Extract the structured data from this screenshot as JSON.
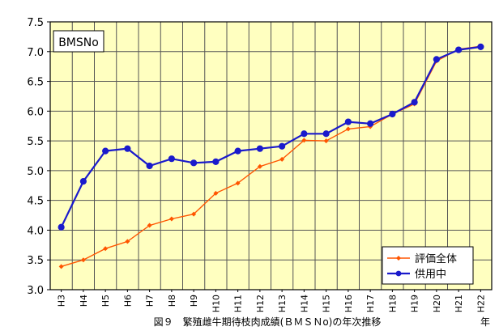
{
  "chart_data": {
    "type": "line",
    "title": "",
    "inset_label": "BMSNo",
    "caption": "図９　繁殖雌牛期待枝肉成績(ＢＭＳＮo)の年次推移",
    "xlabel": "年",
    "ylabel": "",
    "categories": [
      "H3",
      "H4",
      "H5",
      "H6",
      "H7",
      "H8",
      "H9",
      "H10",
      "H11",
      "H12",
      "H13",
      "H14",
      "H15",
      "H16",
      "H17",
      "H18",
      "H19",
      "H20",
      "H21",
      "H22"
    ],
    "ylim": [
      3.0,
      7.5
    ],
    "yticks": [
      "3.0",
      "3.5",
      "4.0",
      "4.5",
      "5.0",
      "5.5",
      "6.0",
      "6.5",
      "7.0",
      "7.5"
    ],
    "grid": true,
    "legend_position": "bottom-right",
    "series": [
      {
        "name": "評価全体",
        "color": "#ff5500",
        "marker": "diamond",
        "values": [
          3.39,
          3.5,
          3.69,
          3.81,
          4.08,
          4.19,
          4.27,
          4.62,
          4.79,
          5.07,
          5.19,
          5.51,
          5.5,
          5.7,
          5.74,
          5.95,
          6.12,
          6.84,
          7.04,
          7.09
        ]
      },
      {
        "name": "供用中",
        "color": "#1a1acc",
        "marker": "circle",
        "values": [
          4.05,
          4.82,
          5.33,
          5.37,
          5.08,
          5.2,
          5.13,
          5.15,
          5.33,
          5.37,
          5.41,
          5.62,
          5.62,
          5.82,
          5.79,
          5.95,
          6.15,
          6.87,
          7.03,
          7.08
        ]
      }
    ],
    "colors": {
      "plot_background": "#ffffc0",
      "grid": "#555555",
      "frame": "#000000"
    }
  }
}
